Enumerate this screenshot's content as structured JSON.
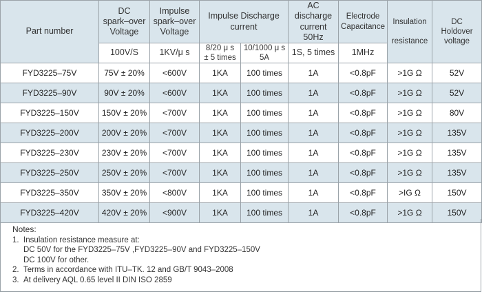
{
  "headers": {
    "part_number": "Part number",
    "dc_spark": [
      "DC",
      "spark–over",
      "Voltage"
    ],
    "impulse_spark": [
      "Impulse",
      "spark–over",
      "Voltage"
    ],
    "impulse_discharge": [
      "Impulse Discharge",
      "current"
    ],
    "ac_discharge": [
      "AC",
      "discharge",
      "current 50Hz"
    ],
    "electrode_cap": [
      "Electrode",
      "Capacitance"
    ],
    "insulation": [
      "Insulation",
      "resistance"
    ],
    "dc_holdover": [
      "DC",
      "Holdover",
      "voltage"
    ]
  },
  "subheaders": {
    "dc_spark": "100V/S",
    "impulse_spark": "1KV/μ s",
    "impulse_8_20": [
      "8/20 μ s",
      "± 5 times"
    ],
    "impulse_10_1000": [
      "10/1000 μ s",
      "5A"
    ],
    "ac_discharge": "1S, 5 times",
    "electrode_cap": "1MHz"
  },
  "rows": [
    {
      "part": "FYD3225–75V",
      "dc": "75V ± 20%",
      "imp": "<600V",
      "i820": "1KA",
      "i10": "100 times",
      "ac": "1A",
      "cap": "<0.8pF",
      "ins": ">1G Ω",
      "hold": "52V"
    },
    {
      "part": "FYD3225–90V",
      "dc": "90V ± 20%",
      "imp": "<600V",
      "i820": "1KA",
      "i10": "100 times",
      "ac": "1A",
      "cap": "<0.8pF",
      "ins": ">1G Ω",
      "hold": "52V"
    },
    {
      "part": "FYD3225–150V",
      "dc": "150V ± 20%",
      "imp": "<700V",
      "i820": "1KA",
      "i10": "100 times",
      "ac": "1A",
      "cap": "<0.8pF",
      "ins": ">1G Ω",
      "hold": "80V"
    },
    {
      "part": "FYD3225–200V",
      "dc": "200V ± 20%",
      "imp": "<700V",
      "i820": "1KA",
      "i10": "100 times",
      "ac": "1A",
      "cap": "<0.8pF",
      "ins": ">1G Ω",
      "hold": "135V"
    },
    {
      "part": "FYD3225–230V",
      "dc": "230V ± 20%",
      "imp": "<700V",
      "i820": "1KA",
      "i10": "100 times",
      "ac": "1A",
      "cap": "<0.8pF",
      "ins": ">1G Ω",
      "hold": "135V"
    },
    {
      "part": "FYD3225–250V",
      "dc": "250V ± 20%",
      "imp": "<700V",
      "i820": "1KA",
      "i10": "100 times",
      "ac": "1A",
      "cap": "<0.8pF",
      "ins": ">1G Ω",
      "hold": "135V"
    },
    {
      "part": "FYD3225–350V",
      "dc": "350V ± 20%",
      "imp": "<800V",
      "i820": "1KA",
      "i10": "100 times",
      "ac": "1A",
      "cap": "<0.8pF",
      "ins": ">IG Ω",
      "hold": "150V"
    },
    {
      "part": "FYD3225–420V",
      "dc": "420V ± 20%",
      "imp": "<900V",
      "i820": "1KA",
      "i10": "100 times",
      "ac": "1A",
      "cap": "<0.8pF",
      "ins": ">1G Ω",
      "hold": "150V"
    }
  ],
  "notes": {
    "title": "Notes:",
    "items": [
      {
        "num": "1.",
        "lines": [
          "Insulation resistance measure at:",
          "DC 50V for the FYD3225–75V ,FYD3225–90V and FYD3225–150V",
          "DC 100V for other."
        ]
      },
      {
        "num": "2.",
        "lines": [
          "Terms in accordance with ITU–TK. 12 and GB/T 9043–2008"
        ]
      },
      {
        "num": "3.",
        "lines": [
          "At delivery AQL 0.65 level II DIN ISO 2859"
        ]
      }
    ]
  }
}
